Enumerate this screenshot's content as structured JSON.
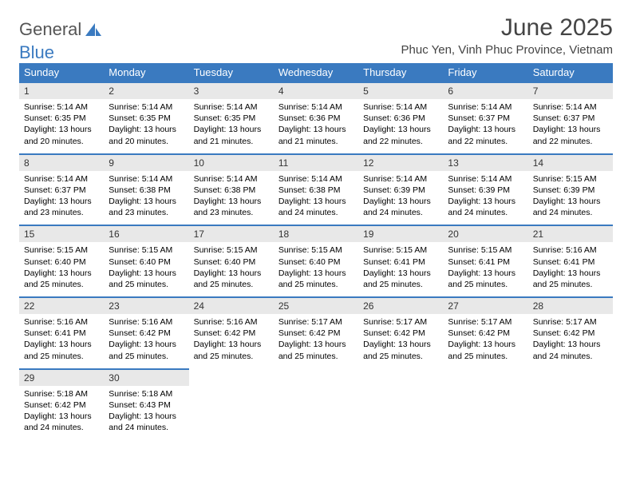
{
  "brand": {
    "part1": "General",
    "part2": "Blue"
  },
  "title": "June 2025",
  "location": "Phuc Yen, Vinh Phuc Province, Vietnam",
  "colors": {
    "header_bg": "#3a7ac0",
    "header_text": "#ffffff",
    "daynum_bg": "#e8e8e8",
    "daynum_border": "#3a7ac0",
    "title_color": "#444444",
    "body_text": "#000000"
  },
  "week_days": [
    "Sunday",
    "Monday",
    "Tuesday",
    "Wednesday",
    "Thursday",
    "Friday",
    "Saturday"
  ],
  "weeks": [
    [
      {
        "num": "1",
        "sunrise": "5:14 AM",
        "sunset": "6:35 PM",
        "daylight": "13 hours and 20 minutes."
      },
      {
        "num": "2",
        "sunrise": "5:14 AM",
        "sunset": "6:35 PM",
        "daylight": "13 hours and 20 minutes."
      },
      {
        "num": "3",
        "sunrise": "5:14 AM",
        "sunset": "6:35 PM",
        "daylight": "13 hours and 21 minutes."
      },
      {
        "num": "4",
        "sunrise": "5:14 AM",
        "sunset": "6:36 PM",
        "daylight": "13 hours and 21 minutes."
      },
      {
        "num": "5",
        "sunrise": "5:14 AM",
        "sunset": "6:36 PM",
        "daylight": "13 hours and 22 minutes."
      },
      {
        "num": "6",
        "sunrise": "5:14 AM",
        "sunset": "6:37 PM",
        "daylight": "13 hours and 22 minutes."
      },
      {
        "num": "7",
        "sunrise": "5:14 AM",
        "sunset": "6:37 PM",
        "daylight": "13 hours and 22 minutes."
      }
    ],
    [
      {
        "num": "8",
        "sunrise": "5:14 AM",
        "sunset": "6:37 PM",
        "daylight": "13 hours and 23 minutes."
      },
      {
        "num": "9",
        "sunrise": "5:14 AM",
        "sunset": "6:38 PM",
        "daylight": "13 hours and 23 minutes."
      },
      {
        "num": "10",
        "sunrise": "5:14 AM",
        "sunset": "6:38 PM",
        "daylight": "13 hours and 23 minutes."
      },
      {
        "num": "11",
        "sunrise": "5:14 AM",
        "sunset": "6:38 PM",
        "daylight": "13 hours and 24 minutes."
      },
      {
        "num": "12",
        "sunrise": "5:14 AM",
        "sunset": "6:39 PM",
        "daylight": "13 hours and 24 minutes."
      },
      {
        "num": "13",
        "sunrise": "5:14 AM",
        "sunset": "6:39 PM",
        "daylight": "13 hours and 24 minutes."
      },
      {
        "num": "14",
        "sunrise": "5:15 AM",
        "sunset": "6:39 PM",
        "daylight": "13 hours and 24 minutes."
      }
    ],
    [
      {
        "num": "15",
        "sunrise": "5:15 AM",
        "sunset": "6:40 PM",
        "daylight": "13 hours and 25 minutes."
      },
      {
        "num": "16",
        "sunrise": "5:15 AM",
        "sunset": "6:40 PM",
        "daylight": "13 hours and 25 minutes."
      },
      {
        "num": "17",
        "sunrise": "5:15 AM",
        "sunset": "6:40 PM",
        "daylight": "13 hours and 25 minutes."
      },
      {
        "num": "18",
        "sunrise": "5:15 AM",
        "sunset": "6:40 PM",
        "daylight": "13 hours and 25 minutes."
      },
      {
        "num": "19",
        "sunrise": "5:15 AM",
        "sunset": "6:41 PM",
        "daylight": "13 hours and 25 minutes."
      },
      {
        "num": "20",
        "sunrise": "5:15 AM",
        "sunset": "6:41 PM",
        "daylight": "13 hours and 25 minutes."
      },
      {
        "num": "21",
        "sunrise": "5:16 AM",
        "sunset": "6:41 PM",
        "daylight": "13 hours and 25 minutes."
      }
    ],
    [
      {
        "num": "22",
        "sunrise": "5:16 AM",
        "sunset": "6:41 PM",
        "daylight": "13 hours and 25 minutes."
      },
      {
        "num": "23",
        "sunrise": "5:16 AM",
        "sunset": "6:42 PM",
        "daylight": "13 hours and 25 minutes."
      },
      {
        "num": "24",
        "sunrise": "5:16 AM",
        "sunset": "6:42 PM",
        "daylight": "13 hours and 25 minutes."
      },
      {
        "num": "25",
        "sunrise": "5:17 AM",
        "sunset": "6:42 PM",
        "daylight": "13 hours and 25 minutes."
      },
      {
        "num": "26",
        "sunrise": "5:17 AM",
        "sunset": "6:42 PM",
        "daylight": "13 hours and 25 minutes."
      },
      {
        "num": "27",
        "sunrise": "5:17 AM",
        "sunset": "6:42 PM",
        "daylight": "13 hours and 25 minutes."
      },
      {
        "num": "28",
        "sunrise": "5:17 AM",
        "sunset": "6:42 PM",
        "daylight": "13 hours and 24 minutes."
      }
    ],
    [
      {
        "num": "29",
        "sunrise": "5:18 AM",
        "sunset": "6:42 PM",
        "daylight": "13 hours and 24 minutes."
      },
      {
        "num": "30",
        "sunrise": "5:18 AM",
        "sunset": "6:43 PM",
        "daylight": "13 hours and 24 minutes."
      },
      null,
      null,
      null,
      null,
      null
    ]
  ],
  "labels": {
    "sunrise": "Sunrise:",
    "sunset": "Sunset:",
    "daylight": "Daylight:"
  }
}
